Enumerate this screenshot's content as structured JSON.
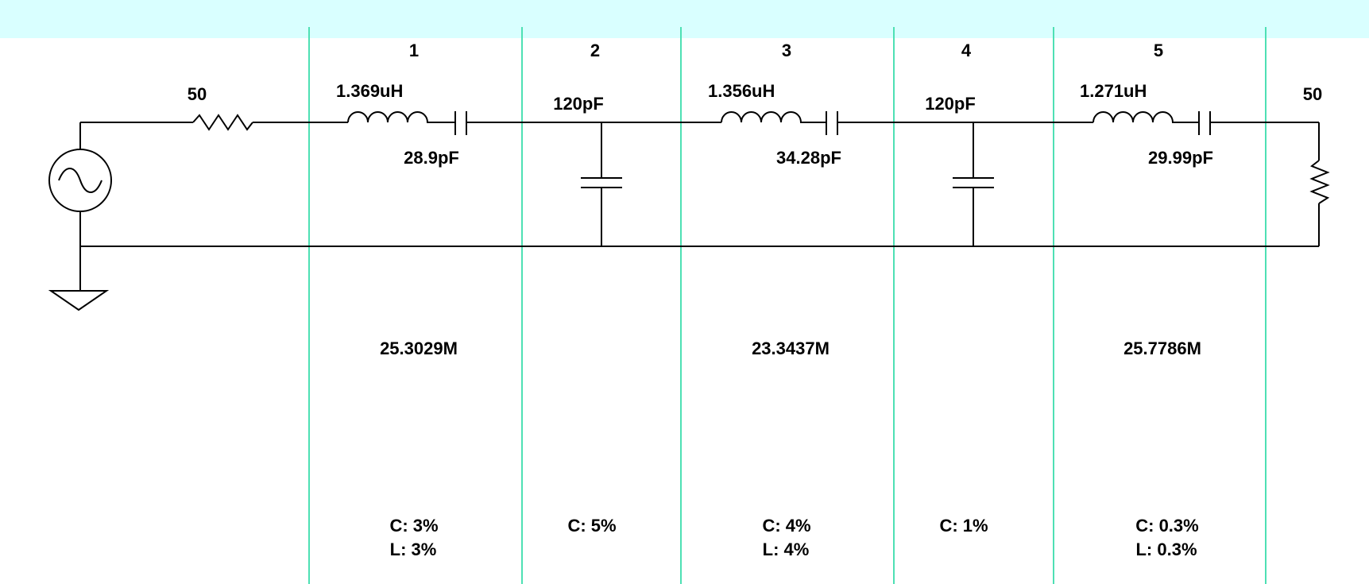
{
  "sections": [
    {
      "number": "1",
      "inductor": "1.369uH",
      "capacitor": "28.9pF",
      "frequency": "25.3029M",
      "tol_c": "C: 3%",
      "tol_l": "L: 3%"
    },
    {
      "number": "2",
      "shunt_cap": "120pF",
      "tol_c": "C: 5%"
    },
    {
      "number": "3",
      "inductor": "1.356uH",
      "capacitor": "34.28pF",
      "frequency": "23.3437M",
      "tol_c": "C: 4%",
      "tol_l": "L: 4%"
    },
    {
      "number": "4",
      "shunt_cap": "120pF",
      "tol_c": "C: 1%"
    },
    {
      "number": "5",
      "inductor": "1.271uH",
      "capacitor": "29.99pF",
      "frequency": "25.7786M",
      "tol_c": "C: 0.3%",
      "tol_l": "L: 0.3%"
    }
  ],
  "source_resistance": "50",
  "load_resistance": "50",
  "colors": {
    "header_band": "#d9ffff",
    "divider": "#4ee0b4",
    "wire": "#000000"
  }
}
